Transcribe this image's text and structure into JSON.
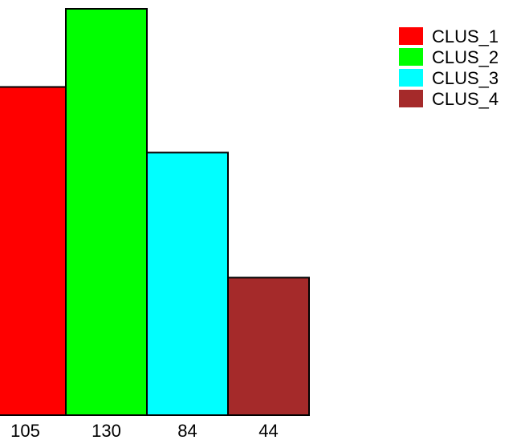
{
  "chart_data": {
    "type": "bar",
    "categories": [
      "105",
      "130",
      "84",
      "44"
    ],
    "values": [
      105,
      130,
      84,
      44
    ],
    "colors": [
      "#ff0000",
      "#00ff00",
      "#00ffff",
      "#a52a2a"
    ],
    "series_names": [
      "CLUS_1",
      "CLUS_2",
      "CLUS_3",
      "CLUS_4"
    ],
    "ylim": [
      0,
      130
    ],
    "grid": false,
    "legend": "top-right"
  }
}
